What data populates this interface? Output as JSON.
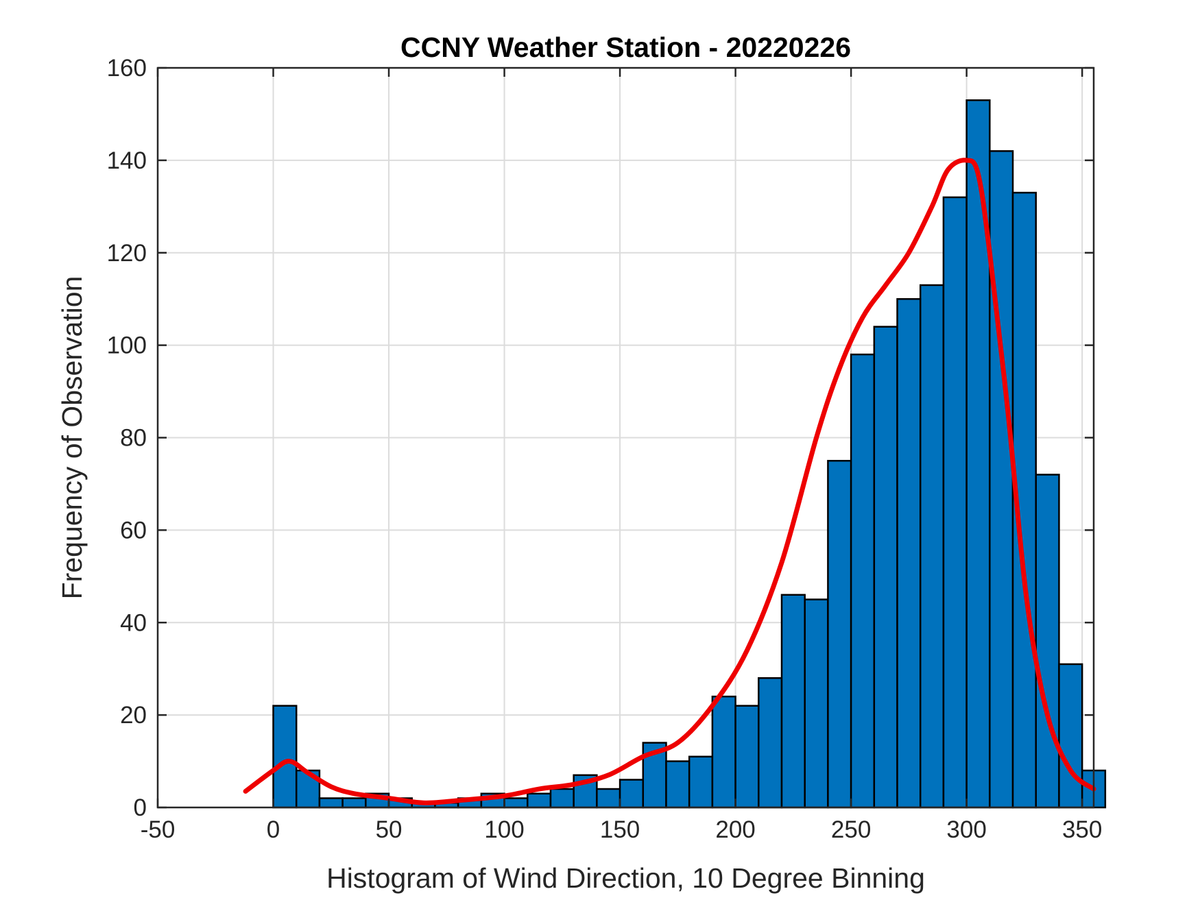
{
  "chart_data": {
    "type": "bar",
    "title": "CCNY Weather Station - 20220226",
    "xlabel": "Histogram of Wind Direction, 10 Degree Binning",
    "ylabel": "Frequency of Observation",
    "xlim": [
      -50,
      355
    ],
    "ylim": [
      0,
      160
    ],
    "xticks": [
      -50,
      0,
      50,
      100,
      150,
      200,
      250,
      300,
      350
    ],
    "yticks": [
      0,
      20,
      40,
      60,
      80,
      100,
      120,
      140,
      160
    ],
    "grid": true,
    "bin_width": 10,
    "bins": [
      {
        "start": 0,
        "count": 22
      },
      {
        "start": 10,
        "count": 8
      },
      {
        "start": 20,
        "count": 2
      },
      {
        "start": 30,
        "count": 2
      },
      {
        "start": 40,
        "count": 3
      },
      {
        "start": 50,
        "count": 2
      },
      {
        "start": 60,
        "count": 1
      },
      {
        "start": 70,
        "count": 1
      },
      {
        "start": 80,
        "count": 2
      },
      {
        "start": 90,
        "count": 3
      },
      {
        "start": 100,
        "count": 2
      },
      {
        "start": 110,
        "count": 3
      },
      {
        "start": 120,
        "count": 4
      },
      {
        "start": 130,
        "count": 7
      },
      {
        "start": 140,
        "count": 4
      },
      {
        "start": 150,
        "count": 6
      },
      {
        "start": 160,
        "count": 14
      },
      {
        "start": 170,
        "count": 10
      },
      {
        "start": 180,
        "count": 11
      },
      {
        "start": 190,
        "count": 24
      },
      {
        "start": 200,
        "count": 22
      },
      {
        "start": 210,
        "count": 28
      },
      {
        "start": 220,
        "count": 46
      },
      {
        "start": 230,
        "count": 45
      },
      {
        "start": 240,
        "count": 75
      },
      {
        "start": 250,
        "count": 98
      },
      {
        "start": 260,
        "count": 104
      },
      {
        "start": 270,
        "count": 110
      },
      {
        "start": 280,
        "count": 113
      },
      {
        "start": 290,
        "count": 132
      },
      {
        "start": 300,
        "count": 153
      },
      {
        "start": 310,
        "count": 142
      },
      {
        "start": 320,
        "count": 133
      },
      {
        "start": 330,
        "count": 72
      },
      {
        "start": 340,
        "count": 31
      },
      {
        "start": 350,
        "count": 8
      }
    ],
    "density_curve": {
      "x": [
        -12,
        0,
        7,
        15,
        25,
        35,
        50,
        65,
        80,
        100,
        115,
        130,
        145,
        160,
        175,
        190,
        205,
        220,
        235,
        245,
        255,
        265,
        275,
        285,
        292,
        300,
        305,
        310,
        318,
        326,
        335,
        345,
        355
      ],
      "y": [
        3.5,
        8,
        10,
        7.5,
        4.5,
        3,
        2,
        1,
        1.5,
        2.5,
        4,
        5,
        7,
        11,
        14,
        22,
        34,
        53,
        80,
        95,
        106,
        113,
        120,
        130,
        138,
        140,
        137,
        120,
        85,
        45,
        20,
        8,
        4
      ]
    },
    "colors": {
      "bar_fill": "#0072BD",
      "bar_edge": "#000000",
      "curve": "#EE0000",
      "grid": "#DCDCDC",
      "axes": "#262626"
    }
  }
}
